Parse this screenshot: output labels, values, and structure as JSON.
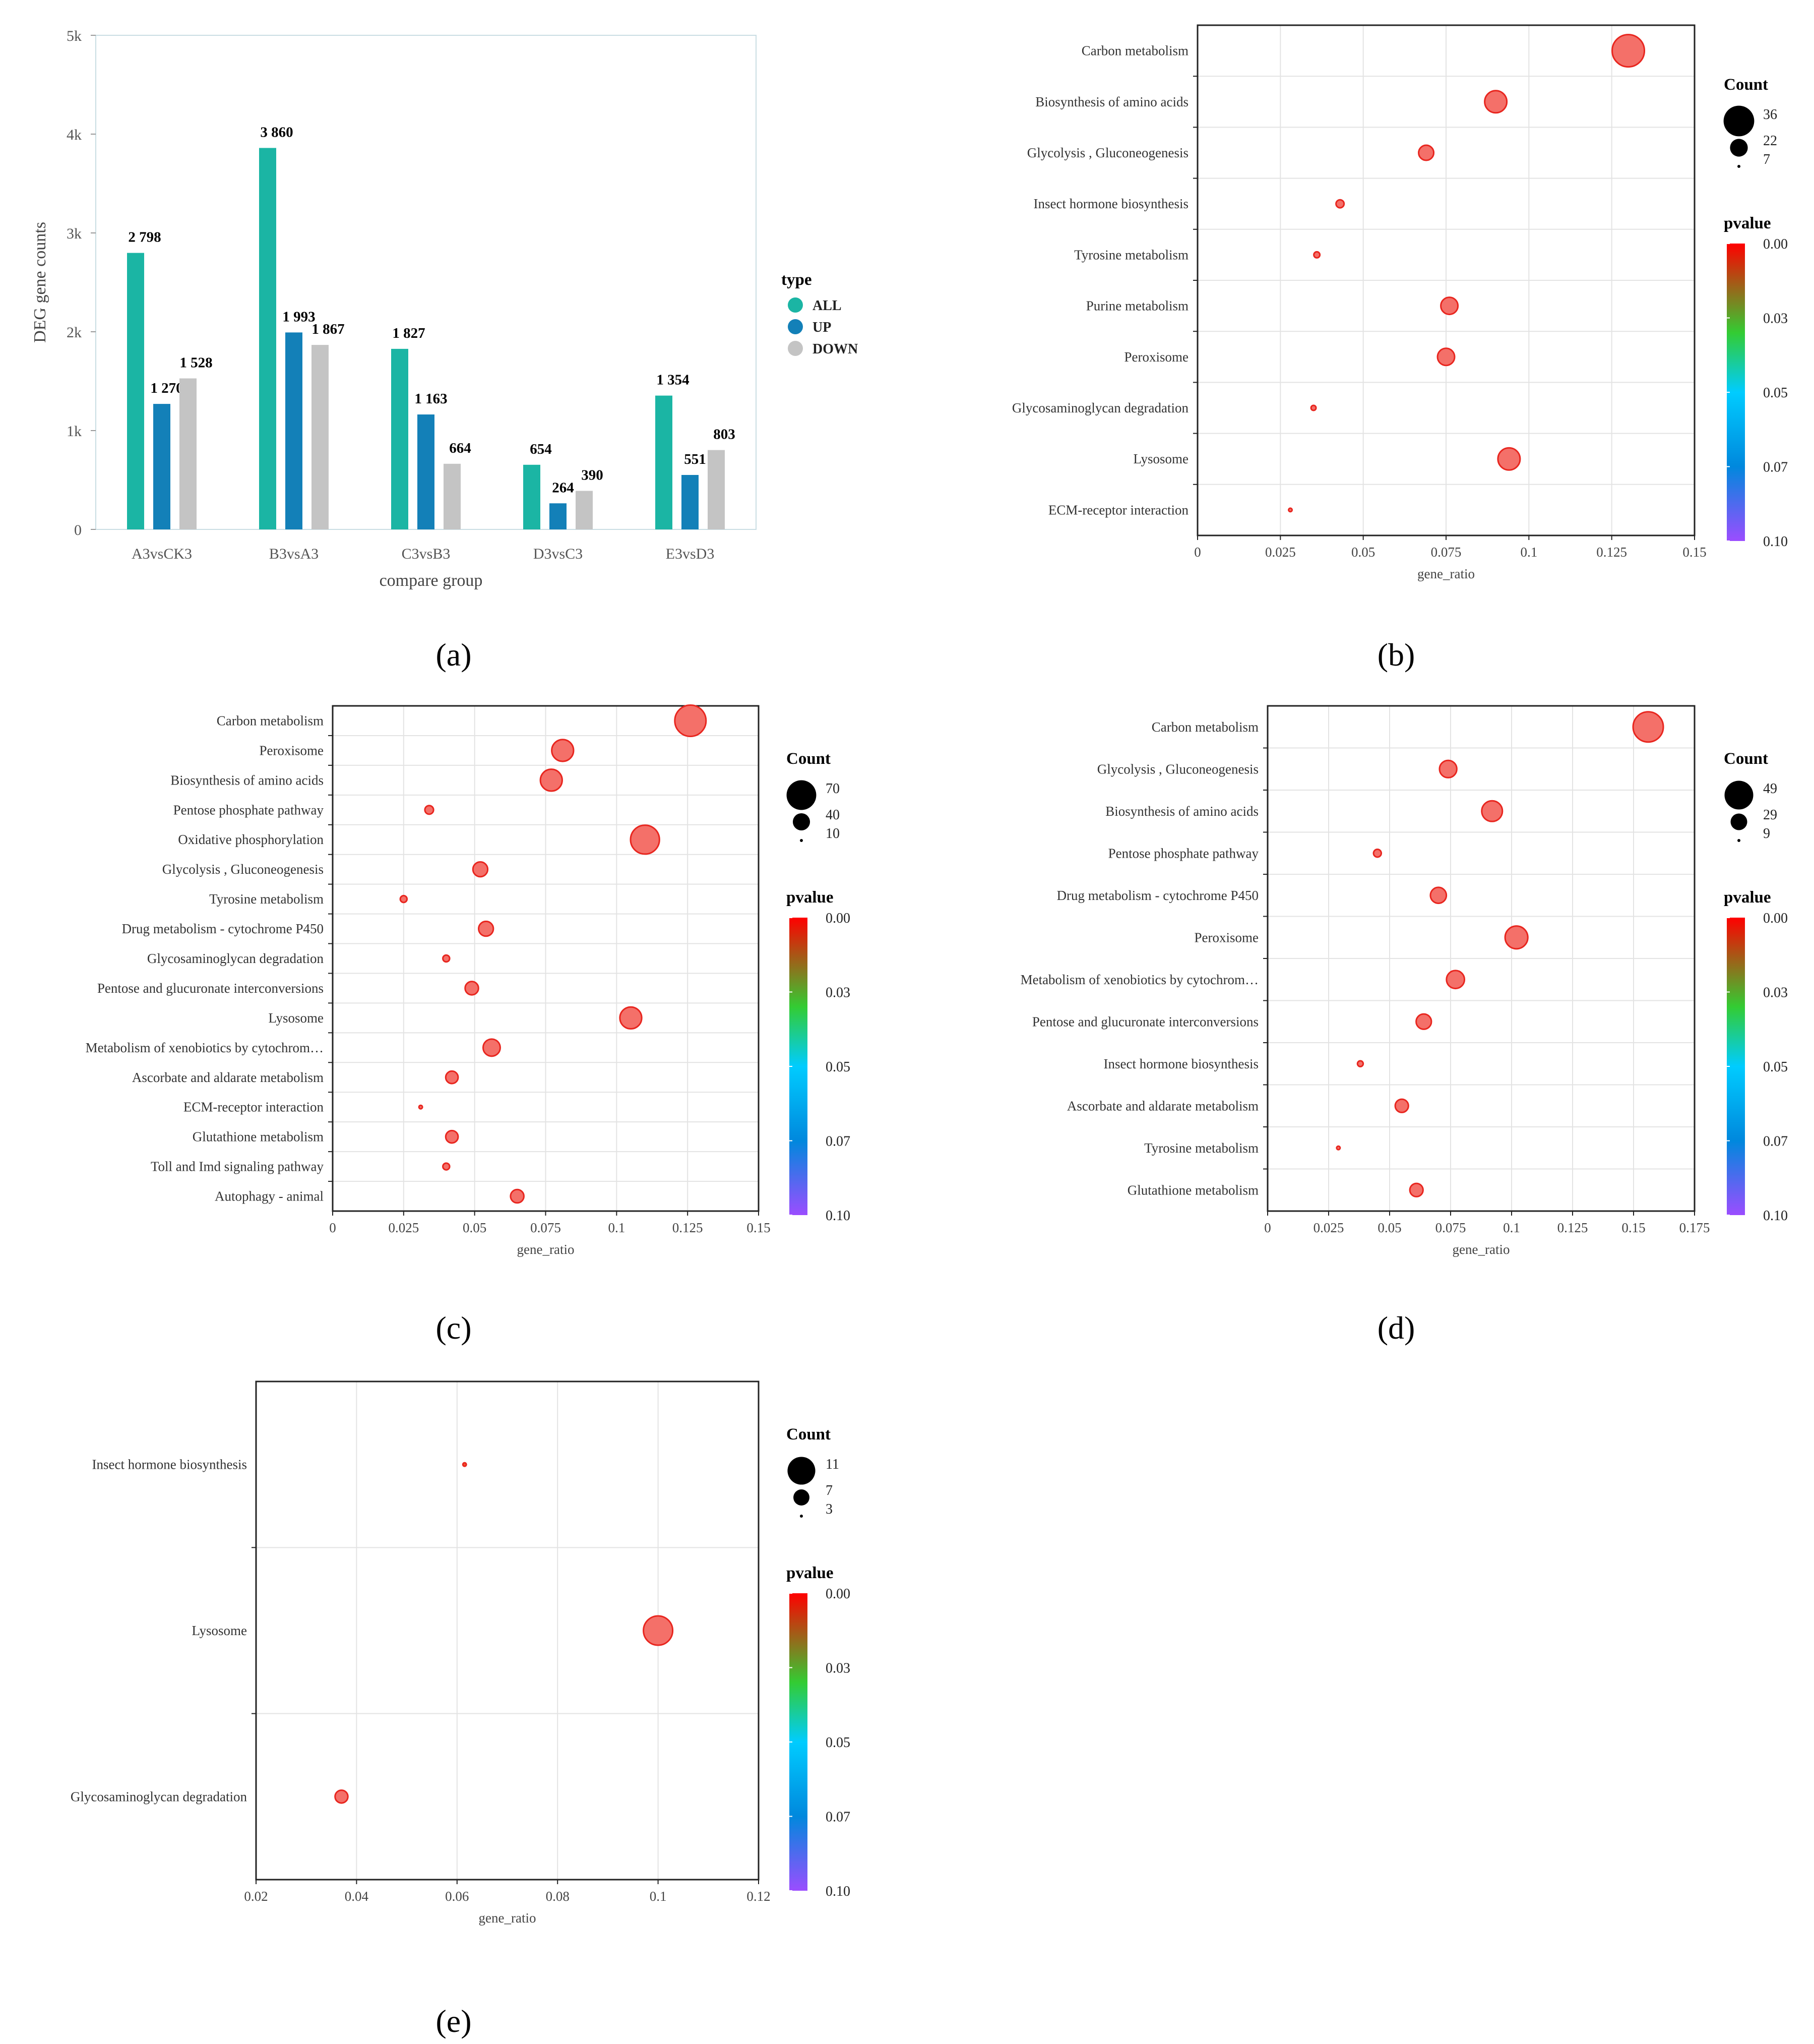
{
  "chart_data": [
    {
      "panel": "(a)",
      "type": "bar",
      "categories": [
        "A3vsCK3",
        "B3vsA3",
        "C3vsB3",
        "D3vsC3",
        "E3vsD3"
      ],
      "series": [
        {
          "name": "ALL",
          "color": "#1bb5a4",
          "values": [
            2798,
            3860,
            1827,
            654,
            1354
          ],
          "labels": [
            "2 798",
            "3 860",
            "1 827",
            "654",
            "1 354"
          ]
        },
        {
          "name": "UP",
          "color": "#1380b8",
          "values": [
            1270,
            1993,
            1163,
            264,
            551
          ],
          "labels": [
            "1 270",
            "1 993",
            "1 163",
            "264",
            "551"
          ]
        },
        {
          "name": "DOWN",
          "color": "#c4c4c4",
          "values": [
            1528,
            1867,
            664,
            390,
            803
          ],
          "labels": [
            "1 528",
            "1 867",
            "664",
            "390",
            "803"
          ]
        }
      ],
      "yticks": [
        0,
        1000,
        2000,
        3000,
        4000,
        5000
      ],
      "yticklabels": [
        "0",
        "1k",
        "2k",
        "3k",
        "4k",
        "5k"
      ],
      "ylim": [
        0,
        5000
      ],
      "xlabel": "compare group",
      "ylabel": "DEG gene counts",
      "legend_title": "type"
    },
    {
      "panel": "(b)",
      "type": "scatter",
      "categories": [
        "Carbon metabolism",
        "Biosynthesis of amino acids",
        "Glycolysis , Gluconeogenesis",
        "Insect hormone biosynthesis",
        "Tyrosine metabolism",
        "Purine metabolism",
        "Peroxisome",
        "Glycosaminoglycan degradation",
        "Lysosome",
        "ECM-receptor interaction"
      ],
      "gene_ratio": [
        0.13,
        0.09,
        0.069,
        0.043,
        0.036,
        0.076,
        0.075,
        0.035,
        0.094,
        0.028
      ],
      "count": [
        36,
        26,
        19,
        12,
        10,
        21,
        21,
        9,
        26,
        7
      ],
      "xticks": [
        0,
        0.025,
        0.05,
        0.075,
        0.1,
        0.125,
        0.15
      ],
      "xticklabels": [
        "0",
        "0.025",
        "0.05",
        "0.075",
        "0.1",
        "0.125",
        "0.15"
      ],
      "xlim": [
        0,
        0.15
      ],
      "xlabel": "gene_ratio",
      "size_legend": {
        "title": "Count",
        "values": [
          36,
          22,
          7
        ],
        "labels": [
          "36",
          "22",
          "7"
        ]
      },
      "color_legend": {
        "title": "pvalue",
        "labels": [
          "0.00",
          "0.03",
          "0.05",
          "0.07",
          "0.10"
        ]
      }
    },
    {
      "panel": "(c)",
      "type": "scatter",
      "categories": [
        "Carbon metabolism",
        "Peroxisome",
        "Biosynthesis of amino acids",
        "Pentose phosphate pathway",
        "Oxidative phosphorylation",
        "Glycolysis , Gluconeogenesis",
        "Tyrosine metabolism",
        "Drug metabolism - cytochrome P450",
        "Glycosaminoglycan degradation",
        "Pentose and glucuronate interconversions",
        "Lysosome",
        "Metabolism of xenobiotics by cytochrom…",
        "Ascorbate and aldarate metabolism",
        "ECM-receptor interaction",
        "Glutathione metabolism",
        "Toll and Imd signaling pathway",
        "Autophagy - animal"
      ],
      "gene_ratio": [
        0.126,
        0.081,
        0.077,
        0.034,
        0.11,
        0.052,
        0.025,
        0.054,
        0.04,
        0.049,
        0.105,
        0.056,
        0.042,
        0.031,
        0.042,
        0.04,
        0.065
      ],
      "count": [
        70,
        50,
        50,
        22,
        65,
        35,
        18,
        35,
        18,
        32,
        50,
        40,
        30,
        10,
        30,
        18,
        32
      ],
      "xticks": [
        0,
        0.025,
        0.05,
        0.075,
        0.1,
        0.125,
        0.15
      ],
      "xticklabels": [
        "0",
        "0.025",
        "0.05",
        "0.075",
        "0.1",
        "0.125",
        "0.15"
      ],
      "xlim": [
        0,
        0.15
      ],
      "xlabel": "gene_ratio",
      "size_legend": {
        "title": "Count",
        "values": [
          70,
          40,
          10
        ],
        "labels": [
          "70",
          "40",
          "10"
        ]
      },
      "color_legend": {
        "title": "pvalue",
        "labels": [
          "0.00",
          "0.03",
          "0.05",
          "0.07",
          "0.10"
        ]
      }
    },
    {
      "panel": "(d)",
      "type": "scatter",
      "categories": [
        "Carbon metabolism",
        "Glycolysis , Gluconeogenesis",
        "Biosynthesis of amino acids",
        "Pentose phosphate pathway",
        "Drug metabolism - cytochrome P450",
        "Peroxisome",
        "Metabolism of xenobiotics by cytochrom…",
        "Pentose and glucuronate interconversions",
        "Insect hormone biosynthesis",
        "Ascorbate and aldarate metabolism",
        "Tyrosine metabolism",
        "Glutathione metabolism"
      ],
      "gene_ratio": [
        0.156,
        0.074,
        0.092,
        0.045,
        0.07,
        0.102,
        0.077,
        0.064,
        0.038,
        0.055,
        0.029,
        0.061
      ],
      "count": [
        49,
        30,
        35,
        16,
        28,
        38,
        31,
        27,
        13,
        24,
        9,
        24
      ],
      "xticks": [
        0,
        0.025,
        0.05,
        0.075,
        0.1,
        0.125,
        0.15,
        0.175
      ],
      "xticklabels": [
        "0",
        "0.025",
        "0.05",
        "0.075",
        "0.1",
        "0.125",
        "0.15",
        "0.175"
      ],
      "xlim": [
        0,
        0.175
      ],
      "xlabel": "gene_ratio",
      "size_legend": {
        "title": "Count",
        "values": [
          49,
          29,
          9
        ],
        "labels": [
          "49",
          "29",
          "9"
        ]
      },
      "color_legend": {
        "title": "pvalue",
        "labels": [
          "0.00",
          "0.03",
          "0.05",
          "0.07",
          "0.10"
        ]
      }
    },
    {
      "panel": "(e)",
      "type": "scatter",
      "categories": [
        "Insect hormone biosynthesis",
        "Lysosome",
        "Glycosaminoglycan degradation"
      ],
      "gene_ratio": [
        0.0615,
        0.1,
        0.037
      ],
      "count": [
        3,
        11,
        6
      ],
      "xticks": [
        0.02,
        0.04,
        0.06,
        0.08,
        0.1,
        0.12
      ],
      "xticklabels": [
        "0.02",
        "0.04",
        "0.06",
        "0.08",
        "0.1",
        "0.12"
      ],
      "xlim": [
        0.02,
        0.12
      ],
      "xlabel": "gene_ratio",
      "size_legend": {
        "title": "Count",
        "values": [
          11,
          7,
          3
        ],
        "labels": [
          "11",
          "7",
          "3"
        ]
      },
      "color_legend": {
        "title": "pvalue",
        "labels": [
          "0.00",
          "0.03",
          "0.05",
          "0.07",
          "0.10"
        ]
      }
    }
  ],
  "colors": {
    "point_fill": "#f47069",
    "point_fill_e_small": "#f4512c",
    "point_stroke": "#e8261f",
    "grid": "#e3e3e3",
    "frame": "#222222"
  }
}
